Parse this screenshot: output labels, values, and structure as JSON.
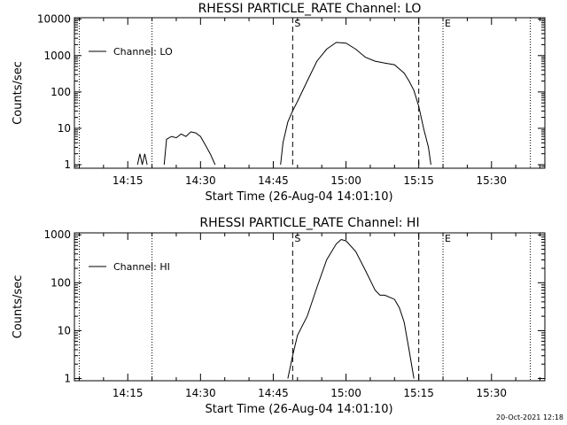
{
  "chart_data": [
    {
      "type": "line",
      "title": "RHESSI PARTICLE_RATE Channel: LO",
      "ylabel": "Counts/sec",
      "xlabel": "Start Time (26-Aug-04 14:01:10)",
      "y_scale": "log",
      "ylim": [
        0.8,
        11000
      ],
      "y_ticks": [
        1,
        10,
        100,
        1000,
        10000
      ],
      "y_tick_labels": [
        "1",
        "10",
        "100",
        "1000",
        "10000"
      ],
      "xlim": [
        "14:04",
        "15:41"
      ],
      "x_ticks": [
        "14:15",
        "14:30",
        "14:45",
        "15:00",
        "15:15",
        "15:30"
      ],
      "x_tick_labels": [
        "14:15",
        "14:30",
        "14:45",
        "15:00",
        "15:15",
        "15:30"
      ],
      "legend": "top-left",
      "series": [
        {
          "name": "Channel: LO",
          "segments": [
            [
              [
                "14:17:00",
                1
              ],
              [
                "14:17:30",
                2
              ],
              [
                "14:18:00",
                1
              ],
              [
                "14:18:30",
                2
              ],
              [
                "14:19:00",
                1
              ]
            ],
            [
              [
                "14:22:30",
                1
              ],
              [
                "14:23:00",
                5
              ],
              [
                "14:24:00",
                6
              ],
              [
                "14:25:00",
                5.5
              ],
              [
                "14:26:00",
                7
              ],
              [
                "14:27:00",
                6
              ],
              [
                "14:28:00",
                8
              ],
              [
                "14:29:00",
                7.5
              ],
              [
                "14:30:00",
                6
              ],
              [
                "14:31:00",
                3.5
              ],
              [
                "14:32:00",
                2
              ],
              [
                "14:33:00",
                1
              ]
            ],
            [
              [
                "14:46:30",
                1
              ],
              [
                "14:47:00",
                4
              ],
              [
                "14:48:00",
                15
              ],
              [
                "14:49:00",
                30
              ],
              [
                "14:50:00",
                55
              ],
              [
                "14:52:00",
                200
              ],
              [
                "14:54:00",
                700
              ],
              [
                "14:56:00",
                1500
              ],
              [
                "14:58:00",
                2300
              ],
              [
                "15:00:00",
                2200
              ],
              [
                "15:02:00",
                1500
              ],
              [
                "15:04:00",
                900
              ],
              [
                "15:06:00",
                700
              ],
              [
                "15:08:00",
                620
              ],
              [
                "15:10:00",
                560
              ],
              [
                "15:12:00",
                330
              ],
              [
                "15:13:00",
                200
              ],
              [
                "15:14:00",
                110
              ],
              [
                "15:15:00",
                40
              ],
              [
                "15:16:00",
                10
              ],
              [
                "15:17:00",
                3
              ],
              [
                "15:17:30",
                1
              ]
            ]
          ]
        }
      ],
      "markers": [
        {
          "label": "",
          "time": "14:05",
          "style": "dotted"
        },
        {
          "label": "",
          "time": "14:20",
          "style": "dotted"
        },
        {
          "label": "S",
          "time": "14:49",
          "style": "dashed"
        },
        {
          "label": "",
          "time": "15:15",
          "style": "dashed"
        },
        {
          "label": "E",
          "time": "15:20",
          "style": "dotted"
        },
        {
          "label": "",
          "time": "15:38",
          "style": "dotted"
        }
      ]
    },
    {
      "type": "line",
      "title": "RHESSI PARTICLE_RATE Channel: HI",
      "ylabel": "Counts/sec",
      "xlabel": "Start Time (26-Aug-04 14:01:10)",
      "y_scale": "log",
      "ylim": [
        0.9,
        1100
      ],
      "y_ticks": [
        1,
        10,
        100,
        1000
      ],
      "y_tick_labels": [
        "1",
        "10",
        "100",
        "1000"
      ],
      "xlim": [
        "14:04",
        "15:41"
      ],
      "x_ticks": [
        "14:15",
        "14:30",
        "14:45",
        "15:00",
        "15:15",
        "15:30"
      ],
      "x_tick_labels": [
        "14:15",
        "14:30",
        "14:45",
        "15:00",
        "15:15",
        "15:30"
      ],
      "legend": "top-left",
      "series": [
        {
          "name": "Channel: HI",
          "segments": [
            [
              [
                "14:48:00",
                1
              ],
              [
                "14:49:00",
                3
              ],
              [
                "14:50:00",
                8
              ],
              [
                "14:52:00",
                20
              ],
              [
                "14:54:00",
                80
              ],
              [
                "14:56:00",
                300
              ],
              [
                "14:58:00",
                650
              ],
              [
                "14:59:00",
                800
              ],
              [
                "15:00:00",
                750
              ],
              [
                "15:02:00",
                450
              ],
              [
                "15:04:00",
                180
              ],
              [
                "15:06:00",
                70
              ],
              [
                "15:07:00",
                55
              ],
              [
                "15:08:00",
                55
              ],
              [
                "15:10:00",
                45
              ],
              [
                "15:11:00",
                30
              ],
              [
                "15:12:00",
                15
              ],
              [
                "15:13:00",
                4
              ],
              [
                "15:14:00",
                1
              ]
            ]
          ]
        }
      ],
      "markers": [
        {
          "label": "",
          "time": "14:05",
          "style": "dotted"
        },
        {
          "label": "",
          "time": "14:20",
          "style": "dotted"
        },
        {
          "label": "S",
          "time": "14:49",
          "style": "dashed"
        },
        {
          "label": "",
          "time": "15:15",
          "style": "dashed"
        },
        {
          "label": "E",
          "time": "15:20",
          "style": "dotted"
        },
        {
          "label": "",
          "time": "15:38",
          "style": "dotted"
        }
      ]
    }
  ],
  "footer": {
    "timestamp": "20-Oct-2021 12:18"
  }
}
